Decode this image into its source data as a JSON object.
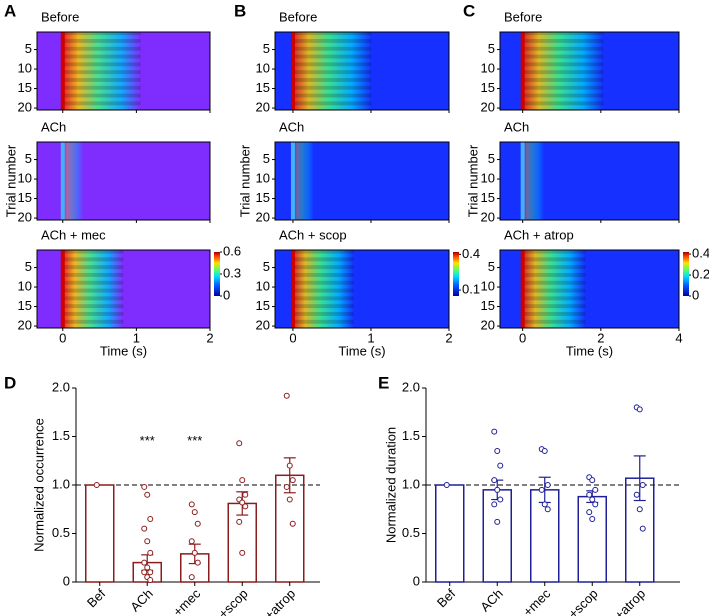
{
  "chart_data": [
    {
      "type": "heatmap",
      "label": "A",
      "panels": [
        {
          "title": "Before"
        },
        {
          "title": "ACh"
        },
        {
          "title": "ACh + mec"
        }
      ],
      "xlim": [
        -0.35,
        2
      ],
      "xticks": [
        0,
        1,
        2
      ],
      "ylim": [
        0.5,
        20.5
      ],
      "yticks": [
        5,
        10,
        15,
        20
      ],
      "clim": [
        0,
        0.6
      ],
      "cticks": [
        0,
        0.3,
        0.6
      ],
      "xlabel": "Time (s)",
      "ylabel": "Trial number",
      "color": "#7f2cff"
    },
    {
      "type": "heatmap",
      "label": "B",
      "panels": [
        {
          "title": "Before"
        },
        {
          "title": "ACh"
        },
        {
          "title": "ACh + scop"
        }
      ],
      "xlim": [
        -0.23,
        2
      ],
      "xticks": [
        0,
        1,
        2
      ],
      "ylim": [
        0.5,
        20.5
      ],
      "yticks": [
        5,
        10,
        15,
        20
      ],
      "clim": [
        0.05,
        0.42
      ],
      "cticks": [
        0.1,
        0.4
      ],
      "xlabel": "Time (s)",
      "ylabel": "Trial number",
      "color": "#1530ff"
    },
    {
      "type": "heatmap",
      "label": "C",
      "panels": [
        {
          "title": "Before"
        },
        {
          "title": "ACh"
        },
        {
          "title": "ACh + atrop"
        }
      ],
      "xlim": [
        -0.58,
        4
      ],
      "xticks": [
        0,
        2,
        4
      ],
      "ylim": [
        0.5,
        20.5
      ],
      "yticks": [
        5,
        10,
        15,
        20
      ],
      "clim": [
        0,
        0.42
      ],
      "cticks": [
        0,
        0.2,
        0.4
      ],
      "xlabel": "Time (s)",
      "ylabel": "Trial number",
      "color": "#1530ff"
    },
    {
      "type": "bar",
      "label": "D",
      "ylabel": "Normalized occurrence",
      "color": "#8b1c1c",
      "categories": [
        "Bef",
        "ACh",
        "+mec",
        "+scop",
        "+atrop"
      ],
      "values": [
        1,
        0.2,
        0.29,
        0.81,
        1.1
      ],
      "errors": [
        0,
        0.08,
        0.1,
        0.12,
        0.18
      ],
      "points": [
        [
          1
        ],
        [
          0.98,
          0.9,
          0.65,
          0.55,
          0.42,
          0.3,
          0.2,
          0.15,
          0.1,
          0.1,
          0.05,
          0.02
        ],
        [
          0.8,
          0.72,
          0.6,
          0.42,
          0.3,
          0.2,
          0.05
        ],
        [
          1.43,
          1.05,
          0.9,
          0.85,
          0.82,
          0.78,
          0.62,
          0.3
        ],
        [
          1.92,
          1.2,
          1.05,
          0.98,
          0.85,
          0.6
        ]
      ],
      "ylim": [
        0,
        2
      ],
      "yticks": [
        0,
        0.5,
        {
          "value": 1,
          "label": "1.0"
        },
        1.5,
        {
          "value": 2,
          "label": "2.0"
        }
      ],
      "reference_line": 1,
      "annotations": [
        {
          "text": "***",
          "category": "ACh",
          "y": 1.45
        },
        {
          "text": "***",
          "category": "+mec",
          "y": 1.45
        }
      ]
    },
    {
      "type": "bar",
      "label": "E",
      "ylabel": "Normalized duration",
      "color": "#1f1f9a",
      "categories": [
        "Bef",
        "ACh",
        "+mec",
        "+scop",
        "+atrop"
      ],
      "values": [
        1,
        0.95,
        0.95,
        0.88,
        1.07
      ],
      "errors": [
        0,
        0.1,
        0.13,
        0.06,
        0.23
      ],
      "points": [
        [
          1
        ],
        [
          1.55,
          1.35,
          1.2,
          1.05,
          0.95,
          0.85,
          0.8,
          0.62
        ],
        [
          1.37,
          1.35,
          1.0,
          0.95,
          0.8,
          0.75
        ],
        [
          1.08,
          1.05,
          0.95,
          0.9,
          0.85,
          0.8,
          0.72,
          0.65
        ],
        [
          1.8,
          1.78,
          1.0,
          0.9,
          0.75,
          0.55
        ]
      ],
      "ylim": [
        0,
        2
      ],
      "yticks": [
        0,
        0.5,
        {
          "value": 1,
          "label": "1.0"
        },
        1.5,
        {
          "value": 2,
          "label": "2.0"
        }
      ],
      "reference_line": 1
    }
  ]
}
